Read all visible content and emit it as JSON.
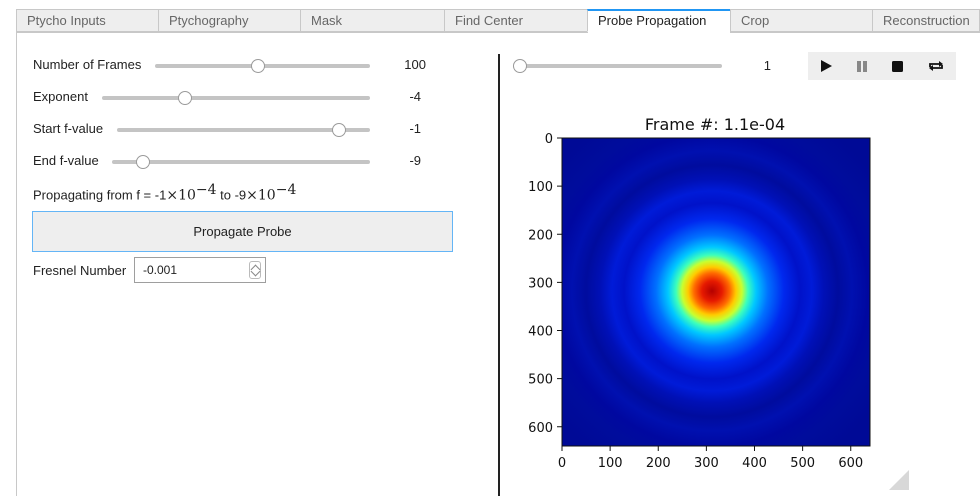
{
  "tabs": [
    {
      "label": "Ptycho Inputs"
    },
    {
      "label": "Ptychography"
    },
    {
      "label": "Mask"
    },
    {
      "label": "Find Center"
    },
    {
      "label": "Probe Propagation"
    },
    {
      "label": "Crop"
    },
    {
      "label": "Reconstruction"
    }
  ],
  "active_tab": "Probe Propagation",
  "controls": {
    "frames": {
      "label": "Number of Frames",
      "value": "100",
      "position": 0.48
    },
    "exponent": {
      "label": "Exponent",
      "value": "-4",
      "position": 0.3
    },
    "start_f": {
      "label": "Start f-value",
      "value": "-1",
      "position": 0.9
    },
    "end_f": {
      "label": "End f-value",
      "value": "-9",
      "position": 0.1
    }
  },
  "propagating": {
    "prefix": "Propagating from f = -1",
    "times": "×",
    "base": "10",
    "exp1": "−4",
    "mid": " to -9",
    "exp2": "−4"
  },
  "propagate_button": "Propagate Probe",
  "fresnel": {
    "label": "Fresnel Number",
    "value": "-0.001"
  },
  "player": {
    "value": "1",
    "position": 0.0
  },
  "player_buttons": [
    "play-icon",
    "pause-icon",
    "stop-icon",
    "loop-icon"
  ],
  "chart_data": {
    "type": "heatmap",
    "title": "Frame #: 1.1e-04",
    "xlim": [
      0,
      640
    ],
    "ylim": [
      640,
      0
    ],
    "xticks": [
      "0",
      "100",
      "200",
      "300",
      "400",
      "500",
      "600"
    ],
    "yticks": [
      "0",
      "100",
      "200",
      "300",
      "400",
      "500",
      "600"
    ],
    "colormap": "jet",
    "center": [
      310,
      315
    ]
  }
}
